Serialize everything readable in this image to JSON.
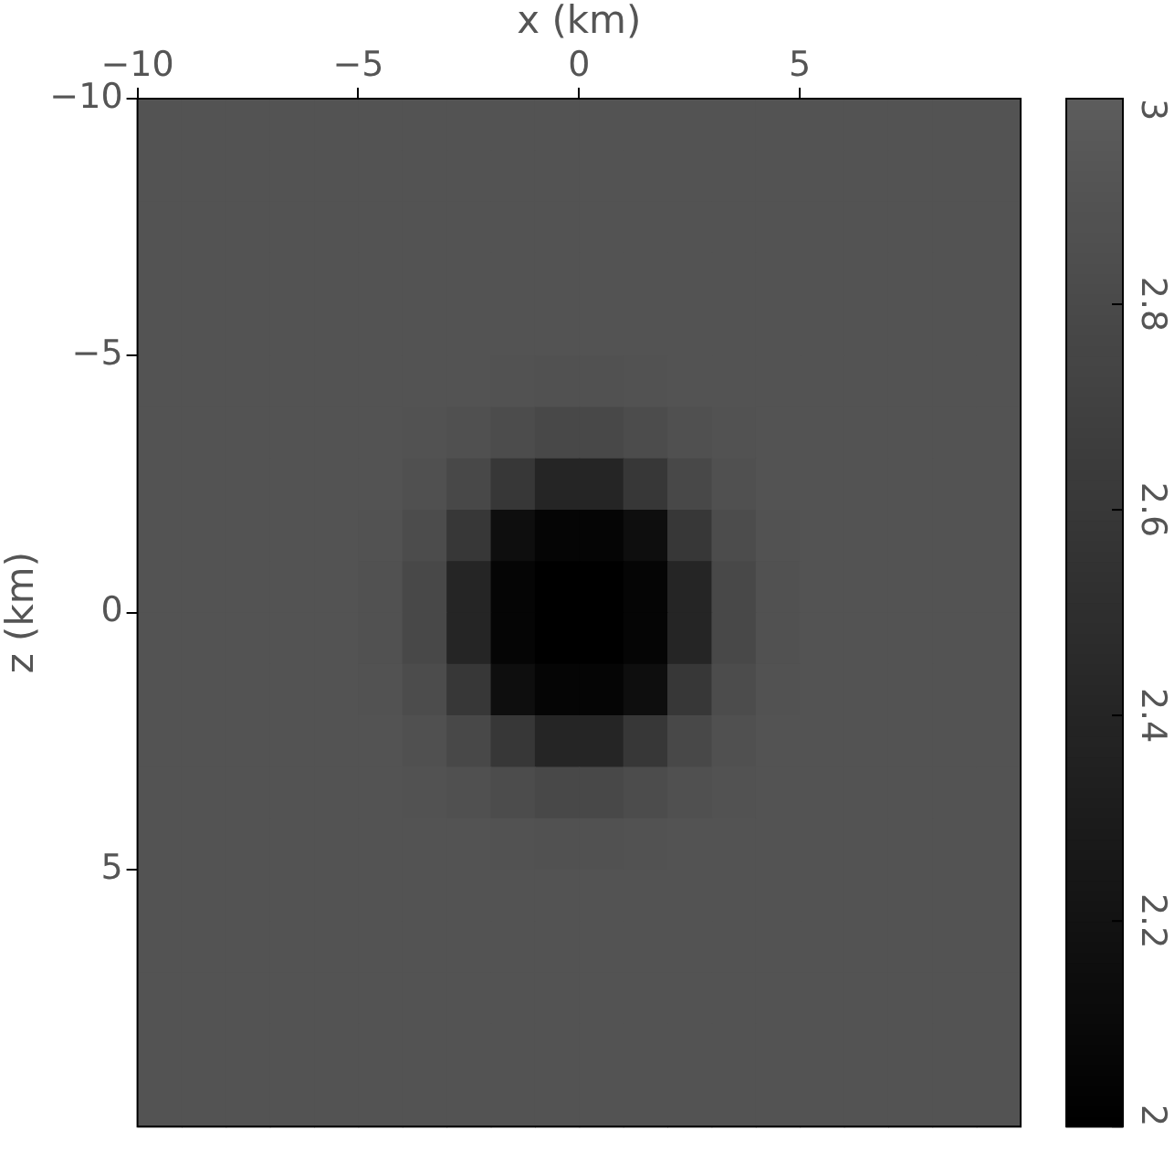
{
  "chart_data": {
    "type": "heatmap",
    "xlabel": "x (km)",
    "ylabel": "z (km)",
    "xlim": [
      -10,
      10
    ],
    "ylim": [
      10,
      -10
    ],
    "xticks": [
      {
        "value": -10,
        "label": "−10"
      },
      {
        "value": -5,
        "label": "−5"
      },
      0,
      5
    ],
    "yticks": [
      {
        "value": -10,
        "label": "−10"
      },
      {
        "value": -5,
        "label": "−5"
      },
      0,
      5
    ],
    "clim": [
      2,
      3
    ],
    "cticks": [
      2,
      2.2,
      2.4,
      2.6,
      2.8,
      3
    ],
    "cells": [
      [
        2.9,
        2.9,
        2.9,
        2.9,
        2.9,
        2.9,
        2.9,
        2.9,
        2.9,
        2.9,
        2.9,
        2.9,
        2.9,
        2.9,
        2.9,
        2.9,
        2.9,
        2.9,
        2.9,
        2.9
      ],
      [
        2.9,
        2.9,
        2.9,
        2.9,
        2.9,
        2.9,
        2.9,
        2.9,
        2.9,
        2.9,
        2.9,
        2.9,
        2.9,
        2.9,
        2.9,
        2.9,
        2.9,
        2.9,
        2.9,
        2.9
      ],
      [
        2.9,
        2.9,
        2.9,
        2.9,
        2.9,
        2.9,
        2.9,
        2.9,
        2.9,
        2.9,
        2.9,
        2.9,
        2.9,
        2.9,
        2.9,
        2.9,
        2.9,
        2.9,
        2.9,
        2.9
      ],
      [
        2.9,
        2.9,
        2.9,
        2.9,
        2.9,
        2.9,
        2.9,
        2.9,
        2.9,
        2.9,
        2.9,
        2.9,
        2.9,
        2.9,
        2.9,
        2.9,
        2.9,
        2.9,
        2.9,
        2.9
      ],
      [
        2.9,
        2.9,
        2.9,
        2.9,
        2.9,
        2.9,
        2.9,
        2.9,
        2.9,
        2.9,
        2.9,
        2.9,
        2.9,
        2.9,
        2.9,
        2.9,
        2.9,
        2.9,
        2.9,
        2.9
      ],
      [
        2.9,
        2.9,
        2.9,
        2.9,
        2.9,
        2.9,
        2.9,
        2.9,
        2.89,
        2.88,
        2.88,
        2.89,
        2.9,
        2.9,
        2.9,
        2.9,
        2.9,
        2.9,
        2.9,
        2.9
      ],
      [
        2.9,
        2.9,
        2.9,
        2.9,
        2.9,
        2.9,
        2.89,
        2.87,
        2.83,
        2.78,
        2.78,
        2.83,
        2.87,
        2.89,
        2.9,
        2.9,
        2.9,
        2.9,
        2.9,
        2.9
      ],
      [
        2.9,
        2.9,
        2.9,
        2.9,
        2.9,
        2.9,
        2.87,
        2.78,
        2.6,
        2.4,
        2.4,
        2.6,
        2.78,
        2.87,
        2.9,
        2.9,
        2.9,
        2.9,
        2.9,
        2.9
      ],
      [
        2.9,
        2.9,
        2.9,
        2.9,
        2.9,
        2.89,
        2.83,
        2.6,
        2.15,
        2.05,
        2.05,
        2.15,
        2.6,
        2.83,
        2.89,
        2.9,
        2.9,
        2.9,
        2.9,
        2.9
      ],
      [
        2.9,
        2.9,
        2.9,
        2.9,
        2.9,
        2.88,
        2.78,
        2.4,
        2.05,
        2.0,
        2.0,
        2.05,
        2.4,
        2.78,
        2.88,
        2.9,
        2.9,
        2.9,
        2.9,
        2.9
      ],
      [
        2.9,
        2.9,
        2.9,
        2.9,
        2.9,
        2.88,
        2.78,
        2.4,
        2.05,
        2.0,
        2.0,
        2.05,
        2.4,
        2.78,
        2.88,
        2.9,
        2.9,
        2.9,
        2.9,
        2.9
      ],
      [
        2.9,
        2.9,
        2.9,
        2.9,
        2.9,
        2.89,
        2.83,
        2.6,
        2.15,
        2.05,
        2.05,
        2.15,
        2.6,
        2.83,
        2.89,
        2.9,
        2.9,
        2.9,
        2.9,
        2.9
      ],
      [
        2.9,
        2.9,
        2.9,
        2.9,
        2.9,
        2.9,
        2.87,
        2.78,
        2.6,
        2.4,
        2.4,
        2.6,
        2.78,
        2.87,
        2.9,
        2.9,
        2.9,
        2.9,
        2.9,
        2.9
      ],
      [
        2.9,
        2.9,
        2.9,
        2.9,
        2.9,
        2.9,
        2.89,
        2.87,
        2.83,
        2.78,
        2.78,
        2.83,
        2.87,
        2.89,
        2.9,
        2.9,
        2.9,
        2.9,
        2.9,
        2.9
      ],
      [
        2.9,
        2.9,
        2.9,
        2.9,
        2.9,
        2.9,
        2.9,
        2.9,
        2.89,
        2.88,
        2.88,
        2.89,
        2.9,
        2.9,
        2.9,
        2.9,
        2.9,
        2.9,
        2.9,
        2.9
      ],
      [
        2.9,
        2.9,
        2.9,
        2.9,
        2.9,
        2.9,
        2.9,
        2.9,
        2.9,
        2.9,
        2.9,
        2.9,
        2.9,
        2.9,
        2.9,
        2.9,
        2.9,
        2.9,
        2.9,
        2.9
      ],
      [
        2.9,
        2.9,
        2.9,
        2.9,
        2.9,
        2.9,
        2.9,
        2.9,
        2.9,
        2.9,
        2.9,
        2.9,
        2.9,
        2.9,
        2.9,
        2.9,
        2.9,
        2.9,
        2.9,
        2.9
      ],
      [
        2.9,
        2.9,
        2.9,
        2.9,
        2.9,
        2.9,
        2.9,
        2.9,
        2.9,
        2.9,
        2.9,
        2.9,
        2.9,
        2.9,
        2.9,
        2.9,
        2.9,
        2.9,
        2.9,
        2.9
      ],
      [
        2.9,
        2.9,
        2.9,
        2.9,
        2.9,
        2.9,
        2.9,
        2.9,
        2.9,
        2.9,
        2.9,
        2.9,
        2.9,
        2.9,
        2.9,
        2.9,
        2.9,
        2.9,
        2.9,
        2.9
      ],
      [
        2.9,
        2.9,
        2.9,
        2.9,
        2.9,
        2.9,
        2.9,
        2.9,
        2.9,
        2.9,
        2.9,
        2.9,
        2.9,
        2.9,
        2.9,
        2.9,
        2.9,
        2.9,
        2.9,
        2.9
      ]
    ]
  }
}
